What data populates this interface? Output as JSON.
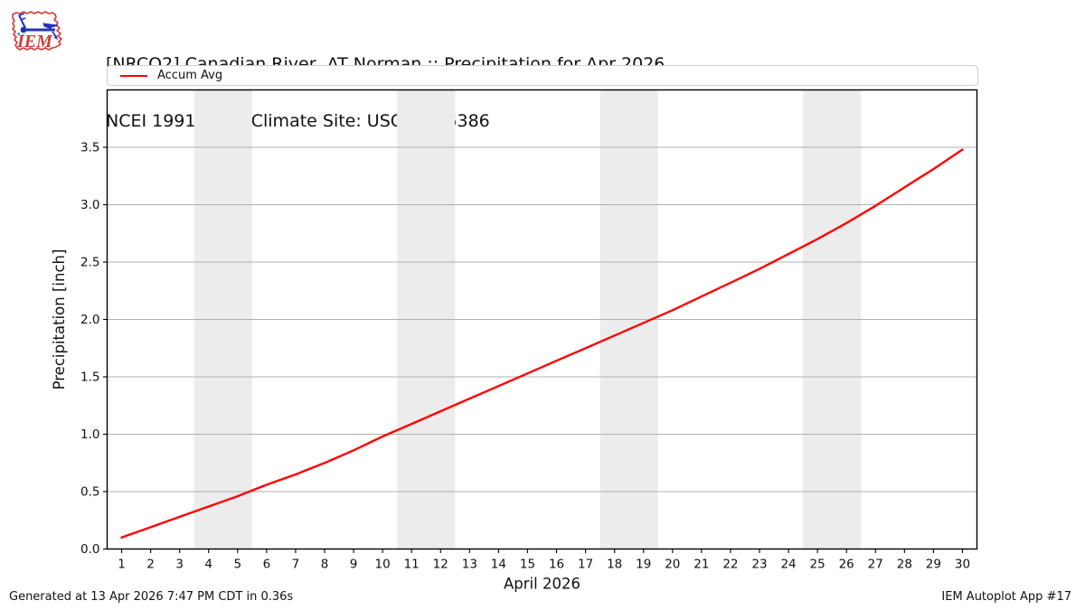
{
  "header": {
    "title_line1": "[NRCO2] Canadian River  AT Norman :: Precipitation for Apr 2026",
    "title_line2": "NCEI 1991-2020 Climate Site: USC00346386",
    "logo_text": "IEM"
  },
  "legend": {
    "items": [
      {
        "label": "Accum Avg",
        "color": "#ff0000"
      }
    ]
  },
  "footer": {
    "left": "Generated at 13 Apr 2026 7:47 PM CDT in 0.36s",
    "right": "IEM Autoplot App #17"
  },
  "colors": {
    "line": "#ff0000",
    "band": "#ececec",
    "grid": "#b0b0b0",
    "axis": "#000000",
    "logo_red": "#d03b3b",
    "logo_blue": "#2233bb"
  },
  "chart_data": {
    "type": "line",
    "title": "[NRCO2] Canadian River  AT Norman :: Precipitation for Apr 2026",
    "subtitle": "NCEI 1991-2020 Climate Site: USC00346386",
    "xlabel": "April 2026",
    "ylabel": "Precipitation [inch]",
    "xlim": [
      0.5,
      30.5
    ],
    "ylim": [
      0,
      4.0
    ],
    "grid": "horizontal",
    "legend_position": "top",
    "x_ticks": [
      1,
      2,
      3,
      4,
      5,
      6,
      7,
      8,
      9,
      10,
      11,
      12,
      13,
      14,
      15,
      16,
      17,
      18,
      19,
      20,
      21,
      22,
      23,
      24,
      25,
      26,
      27,
      28,
      29,
      30
    ],
    "y_ticks": [
      0.0,
      0.5,
      1.0,
      1.5,
      2.0,
      2.5,
      3.0,
      3.5
    ],
    "y_tick_labels": [
      "0.0",
      "0.5",
      "1.0",
      "1.5",
      "2.0",
      "2.5",
      "3.0",
      "3.5"
    ],
    "weekend_bands": [
      [
        3.5,
        5.5
      ],
      [
        10.5,
        12.5
      ],
      [
        17.5,
        19.5
      ],
      [
        24.5,
        26.5
      ]
    ],
    "band_color": "#ececec",
    "grid_color": "#b0b0b0",
    "series": [
      {
        "name": "Accum Avg",
        "color": "#ff0000",
        "x": [
          1,
          2,
          3,
          4,
          5,
          6,
          7,
          8,
          9,
          10,
          11,
          12,
          13,
          14,
          15,
          16,
          17,
          18,
          19,
          20,
          21,
          22,
          23,
          24,
          25,
          26,
          27,
          28,
          29,
          30
        ],
        "values": [
          0.1,
          0.19,
          0.28,
          0.37,
          0.46,
          0.56,
          0.65,
          0.75,
          0.86,
          0.98,
          1.09,
          1.2,
          1.31,
          1.42,
          1.53,
          1.64,
          1.75,
          1.86,
          1.97,
          2.08,
          2.2,
          2.32,
          2.44,
          2.57,
          2.7,
          2.84,
          2.99,
          3.15,
          3.31,
          3.48
        ]
      }
    ]
  }
}
